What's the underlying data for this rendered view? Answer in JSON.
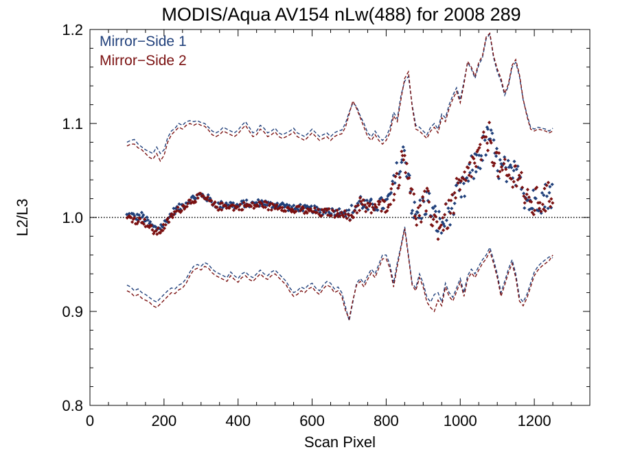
{
  "chart_data": {
    "type": "scatter",
    "title": "MODIS/Aqua AV154 nLw(488) for 2008 289",
    "xlabel": "Scan Pixel",
    "ylabel": "L2/L3",
    "xlim": [
      0,
      1350
    ],
    "ylim": [
      0.8,
      1.2
    ],
    "xticks": [
      0,
      200,
      400,
      600,
      800,
      1000,
      1200
    ],
    "xtick_labels": [
      "0",
      "200",
      "400",
      "600",
      "800",
      "1000",
      "1200"
    ],
    "yticks": [
      0.8,
      0.9,
      1.0,
      1.1,
      1.2
    ],
    "ytick_labels": [
      "0.8",
      "0.9",
      "1.0",
      "1.1",
      "1.2"
    ],
    "reference_line": 1.0,
    "legend_position": "top-left",
    "colors": {
      "ms1": "#1f3f7a",
      "ms2": "#7a1010"
    },
    "series": [
      {
        "name": "Mirror−Side 1",
        "color": "#1f3f7a",
        "x": [
          100,
          110,
          120,
          130,
          140,
          150,
          160,
          170,
          180,
          190,
          200,
          210,
          220,
          230,
          240,
          250,
          260,
          270,
          280,
          290,
          300,
          310,
          320,
          330,
          340,
          350,
          360,
          370,
          380,
          390,
          400,
          410,
          420,
          430,
          440,
          450,
          460,
          470,
          480,
          490,
          500,
          510,
          520,
          530,
          540,
          550,
          560,
          570,
          580,
          590,
          600,
          610,
          620,
          630,
          640,
          650,
          660,
          670,
          680,
          690,
          700,
          710,
          720,
          730,
          740,
          750,
          760,
          770,
          780,
          790,
          800,
          810,
          820,
          830,
          840,
          850,
          860,
          870,
          880,
          890,
          900,
          910,
          920,
          930,
          940,
          950,
          960,
          970,
          980,
          990,
          1000,
          1010,
          1020,
          1030,
          1040,
          1050,
          1060,
          1070,
          1080,
          1090,
          1100,
          1110,
          1120,
          1130,
          1140,
          1150,
          1160,
          1170,
          1180,
          1190,
          1200,
          1210,
          1220,
          1230,
          1240,
          1250
        ],
        "mean": [
          1.002,
          1.003,
          1.001,
          1.0,
          1.002,
          0.998,
          0.994,
          0.99,
          0.988,
          0.99,
          0.993,
          0.998,
          1.004,
          1.008,
          1.01,
          1.013,
          1.016,
          1.019,
          1.021,
          1.023,
          1.024,
          1.022,
          1.02,
          1.016,
          1.014,
          1.013,
          1.014,
          1.015,
          1.014,
          1.013,
          1.012,
          1.014,
          1.015,
          1.014,
          1.014,
          1.015,
          1.016,
          1.016,
          1.014,
          1.013,
          1.014,
          1.014,
          1.013,
          1.012,
          1.01,
          1.009,
          1.01,
          1.011,
          1.009,
          1.008,
          1.009,
          1.008,
          1.006,
          1.007,
          1.008,
          1.007,
          1.006,
          1.006,
          1.008,
          1.005,
          1.003,
          1.008,
          1.012,
          1.018,
          1.014,
          1.01,
          1.012,
          1.014,
          1.013,
          1.014,
          1.015,
          1.022,
          1.035,
          1.045,
          1.055,
          1.068,
          1.05,
          1.01,
          1.0,
          1.006,
          1.012,
          1.018,
          1.01,
          1.0,
          0.995,
          0.99,
          1.0,
          1.006,
          1.012,
          1.02,
          1.025,
          1.03,
          1.04,
          1.05,
          1.055,
          1.062,
          1.07,
          1.08,
          1.09,
          1.07,
          1.06,
          1.05,
          1.05,
          1.045,
          1.04,
          1.05,
          1.055,
          1.03,
          1.018,
          1.015,
          1.017,
          1.022,
          1.02,
          1.022,
          1.026,
          1.024
        ],
        "upper": [
          1.08,
          1.082,
          1.083,
          1.078,
          1.075,
          1.072,
          1.07,
          1.068,
          1.075,
          1.068,
          1.072,
          1.085,
          1.092,
          1.095,
          1.1,
          1.098,
          1.102,
          1.103,
          1.102,
          1.103,
          1.101,
          1.1,
          1.096,
          1.092,
          1.09,
          1.092,
          1.096,
          1.094,
          1.092,
          1.09,
          1.093,
          1.098,
          1.102,
          1.096,
          1.09,
          1.092,
          1.098,
          1.095,
          1.09,
          1.092,
          1.095,
          1.09,
          1.088,
          1.09,
          1.092,
          1.095,
          1.09,
          1.088,
          1.086,
          1.09,
          1.094,
          1.09,
          1.086,
          1.088,
          1.09,
          1.086,
          1.09,
          1.092,
          1.093,
          1.1,
          1.112,
          1.122,
          1.118,
          1.108,
          1.1,
          1.09,
          1.086,
          1.092,
          1.086,
          1.082,
          1.086,
          1.095,
          1.112,
          1.105,
          1.13,
          1.145,
          1.15,
          1.12,
          1.098,
          1.096,
          1.092,
          1.088,
          1.096,
          1.1,
          1.094,
          1.11,
          1.106,
          1.12,
          1.13,
          1.138,
          1.125,
          1.145,
          1.165,
          1.158,
          1.148,
          1.162,
          1.17,
          1.19,
          1.195,
          1.17,
          1.155,
          1.145,
          1.13,
          1.14,
          1.16,
          1.165,
          1.15,
          1.125,
          1.11,
          1.096,
          1.094,
          1.096,
          1.095,
          1.094,
          1.092,
          1.095
        ],
        "lower": [
          0.928,
          0.926,
          0.922,
          0.924,
          0.92,
          0.918,
          0.915,
          0.912,
          0.91,
          0.914,
          0.918,
          0.922,
          0.925,
          0.924,
          0.928,
          0.93,
          0.935,
          0.942,
          0.948,
          0.95,
          0.948,
          0.952,
          0.95,
          0.945,
          0.942,
          0.94,
          0.938,
          0.936,
          0.942,
          0.938,
          0.935,
          0.94,
          0.942,
          0.938,
          0.936,
          0.94,
          0.944,
          0.94,
          0.938,
          0.942,
          0.944,
          0.94,
          0.936,
          0.932,
          0.925,
          0.92,
          0.922,
          0.926,
          0.924,
          0.928,
          0.93,
          0.925,
          0.922,
          0.928,
          0.932,
          0.93,
          0.924,
          0.926,
          0.92,
          0.905,
          0.89,
          0.91,
          0.93,
          0.935,
          0.93,
          0.938,
          0.945,
          0.94,
          0.95,
          0.96,
          0.96,
          0.95,
          0.93,
          0.952,
          0.97,
          0.99,
          0.96,
          0.93,
          0.925,
          0.94,
          0.93,
          0.915,
          0.91,
          0.918,
          0.92,
          0.91,
          0.93,
          0.92,
          0.915,
          0.925,
          0.935,
          0.92,
          0.938,
          0.945,
          0.94,
          0.948,
          0.955,
          0.96,
          0.968,
          0.955,
          0.94,
          0.92,
          0.932,
          0.945,
          0.955,
          0.94,
          0.915,
          0.91,
          0.918,
          0.93,
          0.942,
          0.948,
          0.952,
          0.955,
          0.958,
          0.957
        ]
      },
      {
        "name": "Mirror−Side 2",
        "color": "#7a1010",
        "x": [
          100,
          110,
          120,
          130,
          140,
          150,
          160,
          170,
          180,
          190,
          200,
          210,
          220,
          230,
          240,
          250,
          260,
          270,
          280,
          290,
          300,
          310,
          320,
          330,
          340,
          350,
          360,
          370,
          380,
          390,
          400,
          410,
          420,
          430,
          440,
          450,
          460,
          470,
          480,
          490,
          500,
          510,
          520,
          530,
          540,
          550,
          560,
          570,
          580,
          590,
          600,
          610,
          620,
          630,
          640,
          650,
          660,
          670,
          680,
          690,
          700,
          710,
          720,
          730,
          740,
          750,
          760,
          770,
          780,
          790,
          800,
          810,
          820,
          830,
          840,
          850,
          860,
          870,
          880,
          890,
          900,
          910,
          920,
          930,
          940,
          950,
          960,
          970,
          980,
          990,
          1000,
          1010,
          1020,
          1030,
          1040,
          1050,
          1060,
          1070,
          1080,
          1090,
          1100,
          1110,
          1120,
          1130,
          1140,
          1150,
          1160,
          1170,
          1180,
          1190,
          1200,
          1210,
          1220,
          1230,
          1240,
          1250
        ],
        "mean": [
          0.999,
          1.0,
          0.998,
          0.996,
          0.998,
          0.994,
          0.99,
          0.986,
          0.984,
          0.986,
          0.99,
          0.995,
          1.001,
          1.005,
          1.008,
          1.011,
          1.014,
          1.017,
          1.019,
          1.021,
          1.022,
          1.02,
          1.018,
          1.014,
          1.012,
          1.011,
          1.012,
          1.013,
          1.012,
          1.011,
          1.01,
          1.012,
          1.013,
          1.012,
          1.012,
          1.013,
          1.014,
          1.014,
          1.012,
          1.011,
          1.012,
          1.012,
          1.011,
          1.01,
          1.008,
          1.007,
          1.008,
          1.009,
          1.007,
          1.006,
          1.007,
          1.006,
          1.004,
          1.005,
          1.006,
          1.005,
          1.004,
          1.004,
          1.006,
          1.003,
          0.998,
          1.004,
          1.01,
          1.016,
          1.012,
          1.008,
          1.01,
          1.012,
          1.011,
          1.012,
          1.013,
          1.02,
          1.033,
          1.043,
          1.055,
          1.068,
          1.052,
          1.02,
          1.005,
          1.0,
          1.01,
          1.016,
          1.006,
          0.998,
          0.99,
          0.995,
          0.998,
          1.004,
          1.015,
          1.025,
          1.03,
          1.035,
          1.045,
          1.055,
          1.058,
          1.064,
          1.072,
          1.082,
          1.088,
          1.068,
          1.058,
          1.048,
          1.046,
          1.042,
          1.038,
          1.048,
          1.052,
          1.028,
          1.015,
          1.012,
          1.014,
          1.019,
          1.017,
          1.019,
          1.023,
          1.021
        ],
        "upper": [
          1.076,
          1.078,
          1.078,
          1.074,
          1.072,
          1.068,
          1.064,
          1.062,
          1.068,
          1.06,
          1.066,
          1.08,
          1.088,
          1.092,
          1.096,
          1.094,
          1.098,
          1.1,
          1.098,
          1.1,
          1.098,
          1.097,
          1.093,
          1.088,
          1.086,
          1.088,
          1.092,
          1.09,
          1.088,
          1.086,
          1.089,
          1.094,
          1.098,
          1.092,
          1.086,
          1.088,
          1.094,
          1.091,
          1.086,
          1.088,
          1.091,
          1.086,
          1.084,
          1.086,
          1.088,
          1.091,
          1.086,
          1.084,
          1.082,
          1.086,
          1.09,
          1.086,
          1.082,
          1.084,
          1.086,
          1.082,
          1.086,
          1.088,
          1.089,
          1.096,
          1.11,
          1.124,
          1.116,
          1.106,
          1.096,
          1.086,
          1.082,
          1.088,
          1.082,
          1.078,
          1.082,
          1.09,
          1.108,
          1.102,
          1.126,
          1.148,
          1.155,
          1.118,
          1.094,
          1.092,
          1.088,
          1.084,
          1.092,
          1.096,
          1.09,
          1.106,
          1.102,
          1.116,
          1.126,
          1.134,
          1.122,
          1.142,
          1.166,
          1.16,
          1.15,
          1.165,
          1.172,
          1.192,
          1.196,
          1.172,
          1.158,
          1.148,
          1.132,
          1.142,
          1.162,
          1.168,
          1.152,
          1.126,
          1.108,
          1.094,
          1.092,
          1.094,
          1.093,
          1.092,
          1.09,
          1.092
        ],
        "lower": [
          0.922,
          0.92,
          0.916,
          0.918,
          0.914,
          0.912,
          0.91,
          0.906,
          0.904,
          0.908,
          0.912,
          0.916,
          0.92,
          0.919,
          0.923,
          0.925,
          0.93,
          0.938,
          0.944,
          0.946,
          0.944,
          0.948,
          0.946,
          0.941,
          0.938,
          0.936,
          0.934,
          0.932,
          0.938,
          0.934,
          0.931,
          0.936,
          0.938,
          0.934,
          0.932,
          0.936,
          0.94,
          0.936,
          0.934,
          0.938,
          0.94,
          0.936,
          0.932,
          0.928,
          0.921,
          0.916,
          0.918,
          0.922,
          0.92,
          0.924,
          0.926,
          0.921,
          0.918,
          0.924,
          0.928,
          0.926,
          0.92,
          0.922,
          0.916,
          0.901,
          0.892,
          0.912,
          0.928,
          0.932,
          0.926,
          0.934,
          0.941,
          0.936,
          0.946,
          0.956,
          0.956,
          0.946,
          0.926,
          0.948,
          0.968,
          0.988,
          0.958,
          0.928,
          0.922,
          0.936,
          0.926,
          0.91,
          0.904,
          0.9,
          0.912,
          0.906,
          0.926,
          0.916,
          0.911,
          0.921,
          0.931,
          0.916,
          0.934,
          0.941,
          0.936,
          0.944,
          0.951,
          0.956,
          0.964,
          0.951,
          0.936,
          0.916,
          0.928,
          0.941,
          0.951,
          0.936,
          0.911,
          0.906,
          0.914,
          0.926,
          0.938,
          0.944,
          0.948,
          0.951,
          0.954,
          0.96
        ]
      }
    ]
  }
}
